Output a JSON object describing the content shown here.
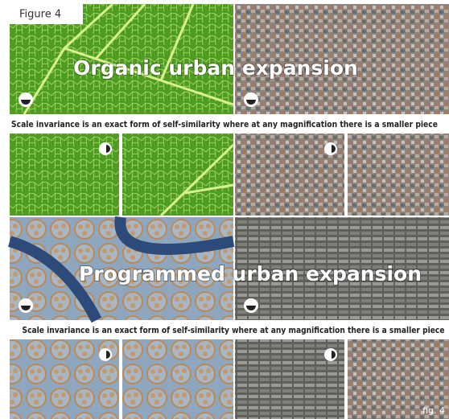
{
  "figure_label": "Figure 4",
  "panels": [
    {
      "title": "Organic urban expansion",
      "caption": "Scale invariance is an exact form of self-similarity where at any magnification there is a smaller piece"
    },
    {
      "title": "Programmed urban expansion",
      "caption": "Scale invariance is an exact form of self-similarity where at any magnification there is a smaller piece"
    }
  ],
  "footer": "fig. 4"
}
